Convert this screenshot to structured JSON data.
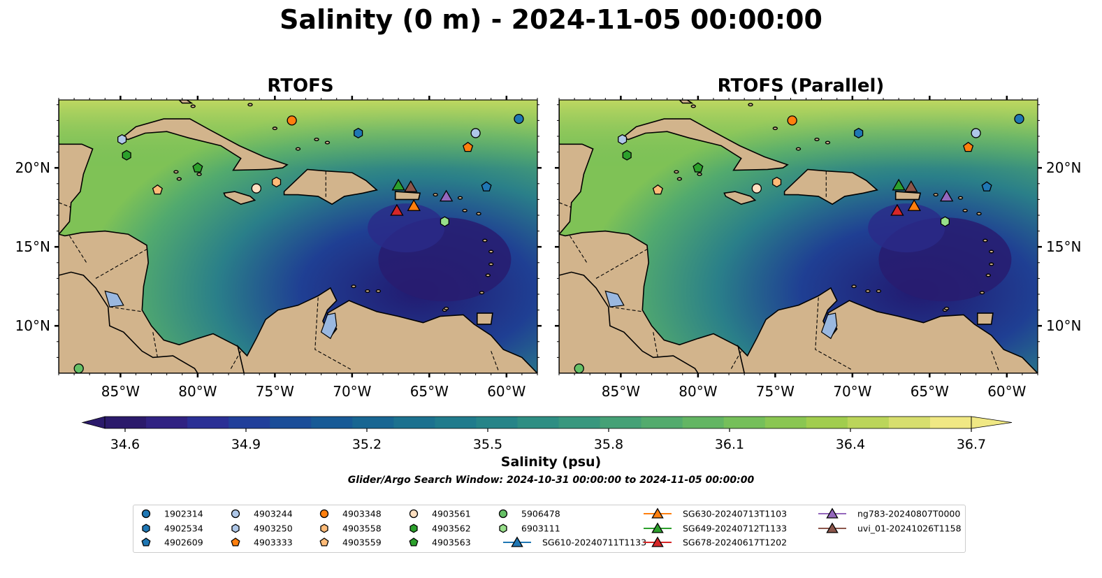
{
  "title": "Salinity (0 m) - 2024-11-05 00:00:00",
  "panels": [
    {
      "title": "RTOFS"
    },
    {
      "title": "RTOFS (Parallel)"
    }
  ],
  "colors": {
    "ocean_low": "#2a1a6a",
    "ocean_high": "#f0e884",
    "land": "#d2b48c",
    "lakes": "#9ab8e0",
    "rivers": "#a7bcd6"
  },
  "chart_data": {
    "type": "map",
    "xlim": [
      -89,
      -58
    ],
    "ylim": [
      7,
      24.3
    ],
    "xticks": [
      "85°W",
      "80°W",
      "75°W",
      "70°W",
      "65°W",
      "60°W"
    ],
    "xtick_values": [
      -85,
      -80,
      -75,
      -70,
      -65,
      -60
    ],
    "yticks": [
      "20°N",
      "15°N",
      "10°N"
    ],
    "ytick_values": [
      20,
      15,
      10
    ],
    "colorbar": {
      "label": "Salinity (psu)",
      "min": 34.6,
      "max": 36.7,
      "ticks": [
        "34.6",
        "34.9",
        "35.2",
        "35.5",
        "35.8",
        "36.1",
        "36.4",
        "36.7"
      ],
      "extend": "both",
      "colors": [
        "#2b1a6b",
        "#302282",
        "#2a2f95",
        "#213f9a",
        "#1b4d98",
        "#175a96",
        "#186692",
        "#1c718f",
        "#207b8c",
        "#268488",
        "#2e8e83",
        "#38977e",
        "#45a176",
        "#53ab6d",
        "#63b563",
        "#75bf5a",
        "#8ac652",
        "#a1cd4e",
        "#bbd55a",
        "#d7de6e",
        "#f0e884"
      ]
    },
    "search_window": "Glider/Argo Search Window: 2024-10-31 00:00:00 to 2024-11-05 00:00:00",
    "legend_position": "bottom",
    "platforms": [
      {
        "name": "1902314",
        "marker": "circle",
        "color": "#1f77b4",
        "lon": -59.2,
        "lat": 23.1
      },
      {
        "name": "4902534",
        "marker": "hexagon",
        "color": "#1f77b4",
        "lon": -69.6,
        "lat": 22.2
      },
      {
        "name": "4902609",
        "marker": "pentagon",
        "color": "#1f77b4",
        "lon": -61.3,
        "lat": 18.8
      },
      {
        "name": "4903244",
        "marker": "circle",
        "color": "#aec7e8",
        "lon": -62.0,
        "lat": 22.2
      },
      {
        "name": "4903250",
        "marker": "hexagon",
        "color": "#aec7e8",
        "lon": -84.9,
        "lat": 21.8
      },
      {
        "name": "4903333",
        "marker": "pentagon",
        "color": "#ff7f0e",
        "lon": -62.5,
        "lat": 21.3
      },
      {
        "name": "4903348",
        "marker": "circle",
        "color": "#ff7f0e",
        "lon": -73.9,
        "lat": 23.0
      },
      {
        "name": "4903558",
        "marker": "hexagon",
        "color": "#ffbb78",
        "lon": -74.9,
        "lat": 19.1
      },
      {
        "name": "4903559",
        "marker": "pentagon",
        "color": "#ffbb78",
        "lon": -82.6,
        "lat": 18.6
      },
      {
        "name": "4903561",
        "marker": "circle",
        "color": "#ffdfc0",
        "lon": -76.2,
        "lat": 18.7
      },
      {
        "name": "4903562",
        "marker": "hexagon",
        "color": "#2ca02c",
        "lon": -84.6,
        "lat": 20.8
      },
      {
        "name": "4903563",
        "marker": "pentagon",
        "color": "#2ca02c",
        "lon": -80.0,
        "lat": 20.0
      },
      {
        "name": "5906478",
        "marker": "circle",
        "color": "#66c066",
        "lon": -87.7,
        "lat": 7.3
      },
      {
        "name": "6903111",
        "marker": "hexagon",
        "color": "#98df8a",
        "lon": -64.0,
        "lat": 16.6
      },
      {
        "name": "SG610-20240711T1133",
        "marker": "triangle",
        "color": "#1f77b4",
        "line": true
      },
      {
        "name": "SG630-20240713T1103",
        "marker": "triangle",
        "color": "#ff7f0e",
        "line": true,
        "lon": -66.0,
        "lat": 17.6
      },
      {
        "name": "SG649-20240712T1133",
        "marker": "triangle",
        "color": "#2ca02c",
        "line": true,
        "lon": -67.0,
        "lat": 18.9
      },
      {
        "name": "SG678-20240617T1202",
        "marker": "triangle",
        "color": "#d62728",
        "line": true,
        "lon": -67.1,
        "lat": 17.3
      },
      {
        "name": "ng783-20240807T0000",
        "marker": "triangle",
        "color": "#9467bd",
        "line": true,
        "lon": -63.9,
        "lat": 18.2
      },
      {
        "name": "uvi_01-20241026T1158",
        "marker": "triangle",
        "color": "#8c564b",
        "line": true,
        "lon": -66.2,
        "lat": 18.8
      }
    ]
  }
}
